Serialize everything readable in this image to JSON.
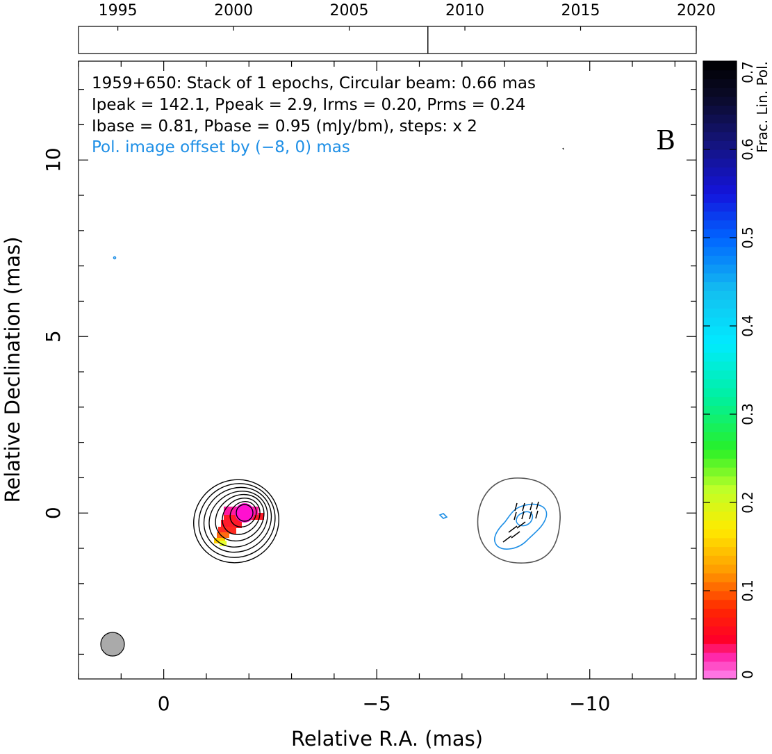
{
  "chart_data": {
    "type": "heatmap",
    "source_label": "1959+650: Stack of 1 epochs, Circular beam: 0.66 mas",
    "info_lines": [
      "Ipeak = 142.1, Ppeak = 2.9, Irms = 0.20, Prms = 0.24",
      "Ibase = 0.81, Pbase = 0.95 (mJy/bm), steps: x 2"
    ],
    "offset_note": "Pol. image offset by (−8, 0) mas",
    "panel_letter": "B",
    "xlabel": "Relative R.A. (mas)",
    "ylabel": "Relative Declination (mas)",
    "xlim": [
      2.0,
      -12.5
    ],
    "ylim": [
      -4.7,
      12.8
    ],
    "x_ticks": [
      0,
      -5,
      -10
    ],
    "x_tick_labels": [
      "0",
      "−5",
      "−10"
    ],
    "y_ticks": [
      0,
      5,
      10
    ],
    "y_tick_labels": [
      "0",
      "5",
      "10"
    ],
    "beam_diameter_mas": 0.66,
    "epoch_axis": {
      "range": [
        1993.3,
        2020.0
      ],
      "tick_labels": [
        "1995",
        "2000",
        "2005",
        "2010",
        "2015",
        "2020"
      ],
      "tick_values": [
        1995,
        2000,
        2005,
        2010,
        2015,
        2020
      ],
      "epochs": [
        2008.4
      ]
    },
    "colorbar": {
      "label": "Frac. Lin. Pol.",
      "range": [
        0,
        0.7
      ],
      "tick_values": [
        0,
        0.1,
        0.2,
        0.3,
        0.4,
        0.5,
        0.6,
        0.7
      ],
      "tick_labels": [
        "0",
        "0.1",
        "0.2",
        "0.3",
        "0.4",
        "0.5",
        "0.6",
        "0.7"
      ]
    },
    "colors": {
      "total_intensity_contours": "#000000",
      "pol_contours": "#1e8fe6",
      "pol_offset_outline": "#555555",
      "beam_fill": "#aaaaaa",
      "offset_note_color": "#1e8fe6"
    }
  }
}
